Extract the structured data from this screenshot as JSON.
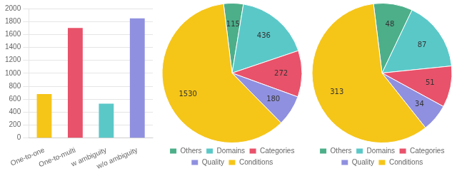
{
  "chart_data": [
    {
      "type": "bar",
      "categories": [
        "One-to-one",
        "One-to-multi",
        "w ambiguity",
        "w/o ambiguity"
      ],
      "values": [
        680,
        1700,
        530,
        1850
      ],
      "colors": [
        "#F5C518",
        "#E8526A",
        "#5BC8C8",
        "#9090E0"
      ],
      "ylim": [
        0,
        2000
      ],
      "yticks": [
        0,
        200,
        400,
        600,
        800,
        1000,
        1200,
        1400,
        1600,
        1800,
        2000
      ],
      "grid": true
    },
    {
      "type": "pie",
      "categories": [
        "Others",
        "Domains",
        "Categories",
        "Quality",
        "Conditions"
      ],
      "values": [
        115,
        436,
        272,
        180,
        1530
      ],
      "colors": [
        "#4CAF8A",
        "#5BC8C8",
        "#E8526A",
        "#9090E0",
        "#F5C518"
      ],
      "data_labels": true,
      "legend": "bottom"
    },
    {
      "type": "pie",
      "categories": [
        "Others",
        "Domains",
        "Categories",
        "Quality",
        "Conditions"
      ],
      "values": [
        48,
        87,
        51,
        34,
        313
      ],
      "colors": [
        "#4CAF8A",
        "#5BC8C8",
        "#E8526A",
        "#9090E0",
        "#F5C518"
      ],
      "data_labels": true,
      "legend": "bottom"
    }
  ]
}
